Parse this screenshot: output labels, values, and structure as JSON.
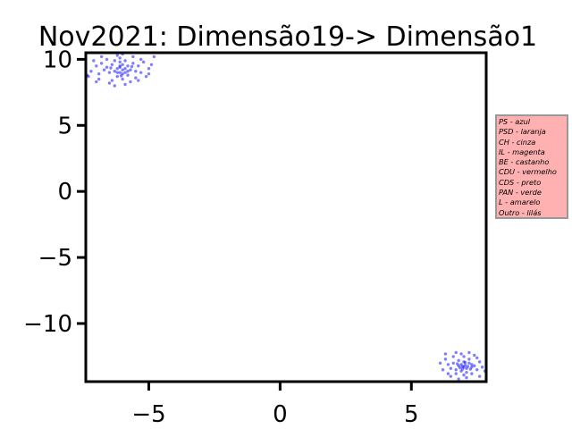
{
  "chart_data": {
    "type": "scatter",
    "title": "Nov2021: Dimensão19-> Dimensão1",
    "xlabel": "",
    "ylabel": "",
    "xlim": [
      -7.4,
      7.85
    ],
    "ylim": [
      -14.4,
      10.5
    ],
    "xticks": [
      -5,
      0,
      5
    ],
    "yticks": [
      10,
      5,
      0,
      -5,
      -10
    ],
    "xtick_labels": [
      "−5",
      "0",
      "5"
    ],
    "ytick_labels": [
      "10",
      "5",
      "0",
      "−5",
      "−10"
    ],
    "grid": false,
    "marker_color": "#0000ff",
    "series": [
      {
        "points": [
          [
            -6.0,
            9.2
          ],
          [
            -6.1,
            9.4
          ],
          [
            -5.9,
            9.0
          ],
          [
            -6.2,
            9.3
          ],
          [
            -5.8,
            9.5
          ],
          [
            -6.3,
            9.1
          ],
          [
            -6.0,
            8.9
          ],
          [
            -6.4,
            9.6
          ],
          [
            -5.7,
            9.2
          ],
          [
            -6.1,
            9.8
          ],
          [
            -6.5,
            9.0
          ],
          [
            -5.6,
            9.7
          ],
          [
            -6.2,
            8.7
          ],
          [
            -5.9,
            9.9
          ],
          [
            -6.6,
            9.4
          ],
          [
            -5.5,
            9.1
          ],
          [
            -6.0,
            8.5
          ],
          [
            -6.3,
            9.9
          ],
          [
            -5.8,
            8.8
          ],
          [
            -6.7,
            9.2
          ],
          [
            -5.4,
            9.5
          ],
          [
            -6.1,
            10.1
          ],
          [
            -6.8,
            9.7
          ],
          [
            -5.3,
            9.0
          ],
          [
            -6.4,
            8.4
          ],
          [
            -5.7,
            8.3
          ],
          [
            -6.9,
            8.9
          ],
          [
            -5.2,
            9.8
          ],
          [
            -7.0,
            9.5
          ],
          [
            -6.2,
            10.3
          ],
          [
            -5.6,
            10.2
          ],
          [
            -7.2,
            9.1
          ],
          [
            -5.0,
            9.3
          ],
          [
            -6.9,
            8.5
          ],
          [
            -5.1,
            8.7
          ],
          [
            -6.5,
            8.2
          ],
          [
            -7.1,
            9.9
          ],
          [
            -4.9,
            9.6
          ],
          [
            -7.3,
            8.7
          ],
          [
            -5.4,
            8.4
          ],
          [
            -6.0,
            10.4
          ],
          [
            -6.6,
            10.0
          ],
          [
            -5.3,
            10.0
          ],
          [
            -7.0,
            8.3
          ],
          [
            -5.9,
            8.1
          ],
          [
            -4.8,
            10.2
          ],
          [
            -6.3,
            8.0
          ],
          [
            -5.5,
            8.6
          ],
          [
            -6.8,
            10.2
          ],
          [
            -5.0,
            8.9
          ],
          [
            -6.1,
            9.0
          ],
          [
            -5.9,
            9.3
          ],
          [
            -6.0,
            9.6
          ],
          [
            -6.2,
            9.0
          ],
          [
            -5.8,
            9.1
          ],
          [
            -6.1,
            9.5
          ],
          [
            -7.35,
            8.8
          ],
          [
            -6.45,
            9.35
          ],
          [
            -5.65,
            9.45
          ],
          [
            -6.05,
            8.75
          ],
          [
            7.0,
            -13.3
          ],
          [
            6.9,
            -13.1
          ],
          [
            7.1,
            -13.4
          ],
          [
            6.8,
            -13.2
          ],
          [
            7.2,
            -13.0
          ],
          [
            6.7,
            -13.5
          ],
          [
            7.0,
            -12.9
          ],
          [
            7.3,
            -13.3
          ],
          [
            6.6,
            -13.0
          ],
          [
            7.1,
            -13.7
          ],
          [
            6.9,
            -13.6
          ],
          [
            7.4,
            -13.2
          ],
          [
            6.5,
            -13.4
          ],
          [
            7.2,
            -12.7
          ],
          [
            6.8,
            -12.8
          ],
          [
            7.5,
            -13.5
          ],
          [
            6.4,
            -13.1
          ],
          [
            7.0,
            -13.9
          ],
          [
            6.7,
            -13.8
          ],
          [
            7.6,
            -12.9
          ],
          [
            6.3,
            -12.7
          ],
          [
            7.3,
            -13.8
          ],
          [
            6.6,
            -12.5
          ],
          [
            7.7,
            -13.3
          ],
          [
            6.5,
            -14.0
          ],
          [
            7.4,
            -12.4
          ],
          [
            6.2,
            -13.5
          ],
          [
            7.8,
            -13.6
          ],
          [
            6.9,
            -12.3
          ],
          [
            7.1,
            -14.1
          ],
          [
            6.8,
            -14.2
          ],
          [
            7.5,
            -12.6
          ],
          [
            6.1,
            -13.0
          ],
          [
            7.2,
            -12.2
          ],
          [
            6.4,
            -13.8
          ],
          [
            7.6,
            -14.0
          ],
          [
            6.7,
            -12.2
          ],
          [
            7.0,
            -12.5
          ],
          [
            6.3,
            -12.3
          ],
          [
            7.3,
            -13.1
          ],
          [
            6.95,
            -13.25
          ],
          [
            7.05,
            -13.15
          ],
          [
            6.85,
            -13.35
          ],
          [
            7.15,
            -13.25
          ],
          [
            6.95,
            -13.45
          ],
          [
            7.05,
            -12.95
          ],
          [
            6.75,
            -13.05
          ],
          [
            7.25,
            -13.45
          ]
        ]
      }
    ],
    "legend": {
      "placement": "right",
      "entries": [
        "PS - azul",
        "PSD - laranja",
        "CH - cinza",
        "IL - magenta",
        "BE - castanho",
        "CDU - vermelho",
        "CDS - preto",
        "PAN - verde",
        "L - amarelo",
        "Outro - lilás"
      ]
    }
  }
}
